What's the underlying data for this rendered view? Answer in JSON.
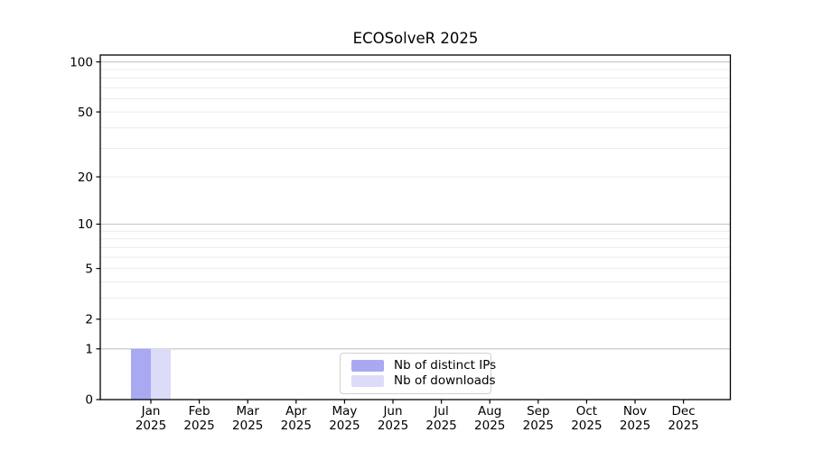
{
  "chart_data": {
    "type": "bar",
    "title": "ECOSolveR 2025",
    "categories": [
      {
        "month": "Jan",
        "year": "2025"
      },
      {
        "month": "Feb",
        "year": "2025"
      },
      {
        "month": "Mar",
        "year": "2025"
      },
      {
        "month": "Apr",
        "year": "2025"
      },
      {
        "month": "May",
        "year": "2025"
      },
      {
        "month": "Jun",
        "year": "2025"
      },
      {
        "month": "Jul",
        "year": "2025"
      },
      {
        "month": "Aug",
        "year": "2025"
      },
      {
        "month": "Sep",
        "year": "2025"
      },
      {
        "month": "Oct",
        "year": "2025"
      },
      {
        "month": "Nov",
        "year": "2025"
      },
      {
        "month": "Dec",
        "year": "2025"
      }
    ],
    "series": [
      {
        "name": "Nb of distinct IPs",
        "color": "#a9a9f2",
        "values": [
          1,
          0,
          0,
          0,
          0,
          0,
          0,
          0,
          0,
          0,
          0,
          0
        ]
      },
      {
        "name": "Nb of downloads",
        "color": "#dcdcf8",
        "values": [
          1,
          0,
          0,
          0,
          0,
          0,
          0,
          0,
          0,
          0,
          0,
          0
        ]
      }
    ],
    "yscale": "log1p",
    "ylim": [
      0,
      110
    ],
    "ytick_labels": [
      "0",
      "1",
      "2",
      "5",
      "10",
      "20",
      "50",
      "100"
    ],
    "ytick_values": [
      0,
      1,
      2,
      5,
      10,
      20,
      50,
      100
    ],
    "gridlines": {
      "major": [
        1,
        10,
        100
      ],
      "minor": [
        2,
        3,
        4,
        5,
        6,
        7,
        8,
        9,
        20,
        30,
        40,
        50,
        60,
        70,
        80,
        90
      ]
    },
    "grid": true,
    "legend": {
      "position": "lower center"
    },
    "colors": {
      "frame": "#000000",
      "text": "#000000",
      "major_grid": "#c4c4c4",
      "minor_grid": "#ececec",
      "background": "#ffffff"
    }
  }
}
